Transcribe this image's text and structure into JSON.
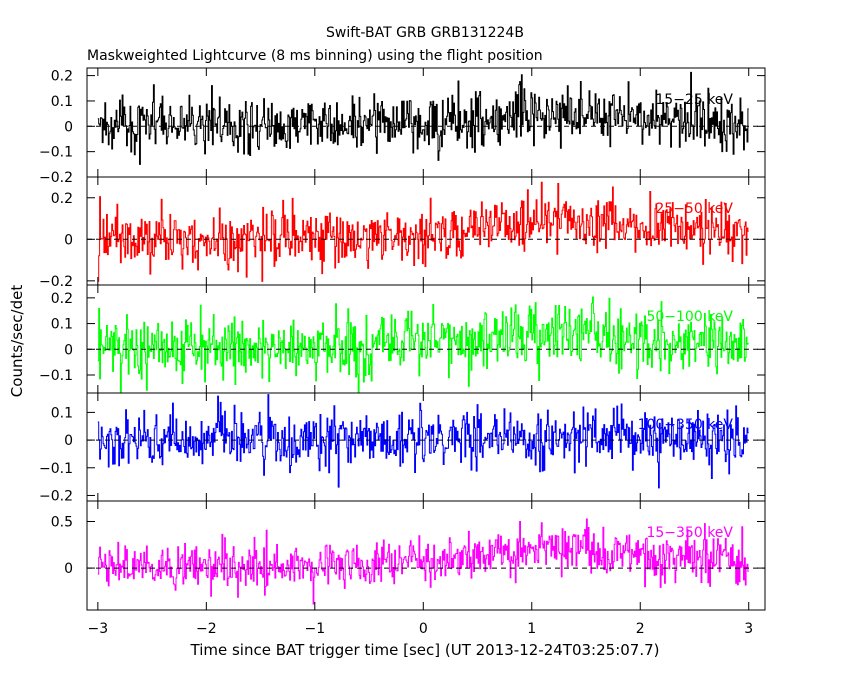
{
  "chart_data": {
    "type": "line",
    "title": "Swift-BAT GRB GRB131224B",
    "subtitle": "Maskweighted Lightcurve (8 ms binning) using the flight position",
    "xlabel": "Time since BAT trigger time [sec] (UT 2013-12-24T03:25:07.7)",
    "ylabel": "Counts/sec/det",
    "xlim": [
      -3.1,
      3.15
    ],
    "x_ticks": [
      -3,
      -2,
      -1,
      0,
      1,
      2,
      3
    ],
    "x_tick_labels": [
      "−3",
      "−2",
      "−1",
      "0",
      "1",
      "2",
      "3"
    ],
    "x_range": [
      -3.0,
      3.0
    ],
    "bin_width_sec": 0.008,
    "grid": false,
    "zero_line": "dashed",
    "panels": [
      {
        "name": "15-25 keV",
        "label": "15−25 keV",
        "color": "#000000",
        "ylim": [
          -0.2,
          0.23
        ],
        "y_ticks": [
          -0.2,
          -0.1,
          0,
          0.1,
          0.2
        ],
        "y_tick_labels": [
          "−0.2",
          "−0.1",
          "0",
          "0.1",
          "0.2"
        ],
        "noise_sigma": 0.055,
        "mean_profile": [
          [
            -3.0,
            0.0
          ],
          [
            0.0,
            0.01
          ],
          [
            0.8,
            0.04
          ],
          [
            1.3,
            0.05
          ],
          [
            2.0,
            0.03
          ],
          [
            3.0,
            0.01
          ]
        ]
      },
      {
        "name": "25-50 keV",
        "label": "25−50 keV",
        "color": "#ff0000",
        "ylim": [
          -0.22,
          0.3
        ],
        "y_ticks": [
          -0.2,
          0,
          0.2
        ],
        "y_tick_labels": [
          "−0.2",
          "0",
          "0.2"
        ],
        "noise_sigma": 0.065,
        "mean_profile": [
          [
            -3.0,
            0.0
          ],
          [
            0.0,
            0.02
          ],
          [
            0.5,
            0.07
          ],
          [
            1.2,
            0.09
          ],
          [
            2.0,
            0.07
          ],
          [
            3.0,
            0.03
          ]
        ]
      },
      {
        "name": "50-100 keV",
        "label": "50−100 keV",
        "color": "#00ff00",
        "ylim": [
          -0.17,
          0.25
        ],
        "y_ticks": [
          -0.1,
          0,
          0.1,
          0.2
        ],
        "y_tick_labels": [
          "−0.1",
          "0",
          "0.1",
          "0.2"
        ],
        "noise_sigma": 0.06,
        "mean_profile": [
          [
            -3.0,
            0.0
          ],
          [
            0.0,
            0.02
          ],
          [
            0.8,
            0.05
          ],
          [
            1.3,
            0.06
          ],
          [
            2.0,
            0.04
          ],
          [
            3.0,
            0.02
          ]
        ]
      },
      {
        "name": "100-350 keV",
        "label": "100−350 keV",
        "color": "#0000ff",
        "ylim": [
          -0.22,
          0.17
        ],
        "y_ticks": [
          -0.2,
          -0.1,
          0,
          0.1
        ],
        "y_tick_labels": [
          "−0.2",
          "−0.1",
          "0",
          "0.1"
        ],
        "noise_sigma": 0.05,
        "mean_profile": [
          [
            -3.0,
            0.0
          ],
          [
            0.0,
            0.0
          ],
          [
            1.5,
            0.01
          ],
          [
            3.0,
            0.0
          ]
        ]
      },
      {
        "name": "15-350 keV",
        "label": "15−350 keV",
        "color": "#ff00ff",
        "ylim": [
          -0.45,
          0.72
        ],
        "y_ticks": [
          0,
          0.5
        ],
        "y_tick_labels": [
          "0",
          "0.5"
        ],
        "noise_sigma": 0.12,
        "mean_profile": [
          [
            -3.0,
            0.0
          ],
          [
            0.0,
            0.05
          ],
          [
            0.6,
            0.15
          ],
          [
            1.2,
            0.22
          ],
          [
            2.0,
            0.15
          ],
          [
            3.0,
            0.05
          ]
        ]
      }
    ]
  }
}
